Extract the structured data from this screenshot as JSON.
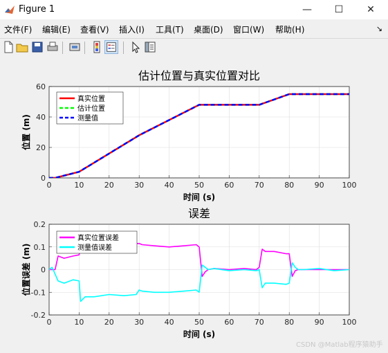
{
  "window": {
    "title": "Figure 1",
    "minimize": "—",
    "maximize": "☐",
    "close": "✕"
  },
  "menu": [
    "文件(F)",
    "编辑(E)",
    "查看(V)",
    "插入(I)",
    "工具(T)",
    "桌面(D)",
    "窗口(W)",
    "帮助(H)"
  ],
  "menu_overflow": "↘",
  "toolbar": [
    "new-file-icon",
    "open-folder-icon",
    "save-icon",
    "print-icon",
    "print-preview-icon",
    "colorbar-icon",
    "legend-icon",
    "pointer-icon",
    "property-inspector-icon"
  ],
  "chart_data": [
    {
      "type": "line",
      "title": "估计位置与真实位置对比",
      "xlabel": "时间 (s)",
      "ylabel": "位置 (m)",
      "xlim": [
        0,
        100
      ],
      "ylim": [
        0,
        60
      ],
      "xticks": [
        "0",
        "10",
        "20",
        "30",
        "40",
        "50",
        "60",
        "70",
        "80",
        "90",
        "100"
      ],
      "yticks": [
        "0",
        "20",
        "40",
        "60"
      ],
      "grid": true,
      "legend_position": "top-left",
      "series": [
        {
          "name": "真实位置",
          "color": "#ff0000",
          "style": "solid",
          "x": [
            0,
            2,
            10,
            30,
            50,
            70,
            80,
            100
          ],
          "y": [
            0,
            0,
            4,
            28,
            48,
            48,
            55,
            55
          ]
        },
        {
          "name": "估计位置",
          "color": "#00ff00",
          "style": "dashed",
          "x": [
            0,
            2,
            10,
            30,
            50,
            70,
            80,
            100
          ],
          "y": [
            0,
            0,
            4,
            28,
            48,
            48,
            55,
            55
          ]
        },
        {
          "name": "测量值",
          "color": "#0000ff",
          "style": "dashed",
          "x": [
            0,
            2,
            10,
            30,
            50,
            70,
            80,
            100
          ],
          "y": [
            0,
            0,
            4,
            28,
            48,
            48,
            55,
            55
          ]
        }
      ]
    },
    {
      "type": "line",
      "title": "误差",
      "xlabel": "时间 (s)",
      "ylabel": "位置误差 (m)",
      "xlim": [
        0,
        100
      ],
      "ylim": [
        -0.2,
        0.2
      ],
      "xticks": [
        "0",
        "10",
        "20",
        "30",
        "40",
        "50",
        "60",
        "70",
        "80",
        "90",
        "100"
      ],
      "yticks": [
        "-0.2",
        "-0.1",
        "0",
        "0.1",
        "0.2"
      ],
      "grid": true,
      "legend_position": "top-left",
      "series": [
        {
          "name": "真实位置误差",
          "color": "#ff00ff",
          "x": [
            0,
            1,
            2,
            3,
            5,
            8,
            10,
            10.5,
            12,
            15,
            20,
            25,
            29,
            30,
            31,
            35,
            40,
            45,
            49,
            50,
            51,
            52,
            53,
            55,
            60,
            65,
            69,
            70,
            71,
            72,
            75,
            79,
            80,
            81,
            82,
            83,
            85,
            90,
            95,
            100
          ],
          "y": [
            0,
            0,
            0,
            0.06,
            0.05,
            0.06,
            0.065,
            0.1,
            0.11,
            0.12,
            0.115,
            0.12,
            0.115,
            0.115,
            0.11,
            0.105,
            0.1,
            0.105,
            0.11,
            0.1,
            -0.03,
            -0.01,
            0.0,
            0.005,
            0.0,
            0.005,
            0.0,
            0.01,
            0.09,
            0.08,
            0.08,
            0.07,
            0.07,
            -0.03,
            -0.005,
            0.0,
            0.0,
            0.0,
            0.0,
            0.0
          ]
        },
        {
          "name": "测量值误差",
          "color": "#00ffff",
          "x": [
            0,
            1,
            2,
            3,
            5,
            8,
            10,
            10.5,
            12,
            15,
            20,
            25,
            29,
            30,
            31,
            35,
            40,
            45,
            49,
            50,
            51,
            52,
            53,
            55,
            60,
            65,
            69,
            70,
            71,
            72,
            75,
            79,
            80,
            81,
            82,
            83,
            85,
            90,
            95,
            100
          ],
          "y": [
            0,
            0.01,
            -0.02,
            -0.05,
            -0.06,
            -0.045,
            -0.05,
            -0.14,
            -0.12,
            -0.12,
            -0.11,
            -0.115,
            -0.11,
            -0.09,
            -0.095,
            -0.1,
            -0.1,
            -0.095,
            -0.09,
            -0.1,
            0.02,
            0.01,
            0.0,
            0.005,
            -0.005,
            0.0,
            -0.005,
            0.0,
            -0.08,
            -0.06,
            -0.06,
            -0.065,
            -0.06,
            0.03,
            0.01,
            0.0,
            0.0,
            0.005,
            -0.005,
            0.0
          ]
        }
      ]
    }
  ],
  "watermark": "CSDN @Matlab程序猿助手"
}
